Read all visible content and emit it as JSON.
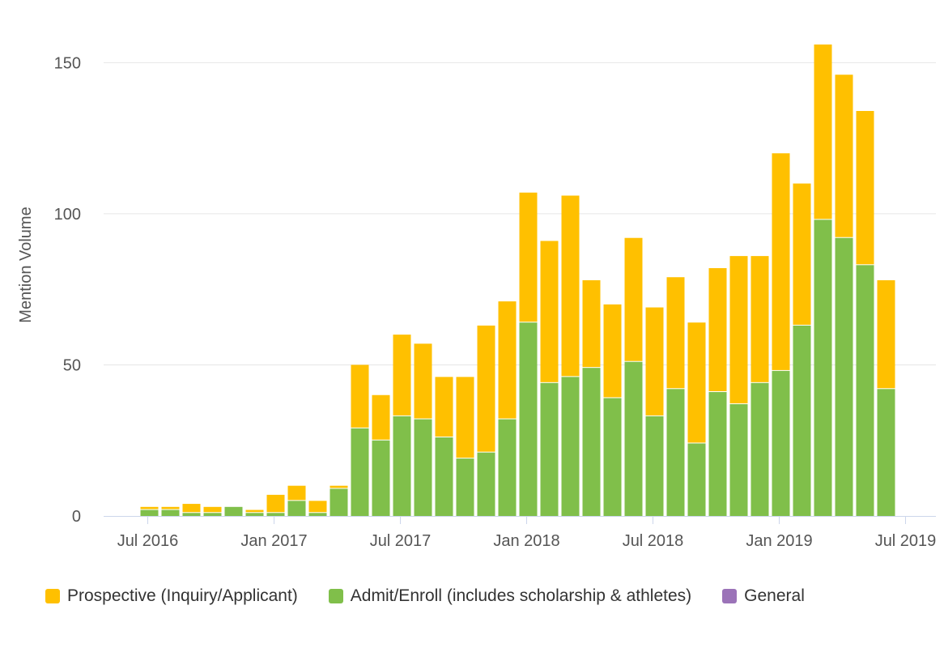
{
  "chart_data": {
    "type": "bar",
    "stacked": true,
    "ylabel": "Mention Volume",
    "ylim": [
      0,
      160
    ],
    "yticks": [
      0,
      50,
      100,
      150
    ],
    "xticks": [
      {
        "label": "Jul 2016",
        "month": 0
      },
      {
        "label": "Jan 2017",
        "month": 6
      },
      {
        "label": "Jul 2017",
        "month": 12
      },
      {
        "label": "Jan 2018",
        "month": 18
      },
      {
        "label": "Jul 2018",
        "month": 24
      },
      {
        "label": "Jan 2019",
        "month": 30
      },
      {
        "label": "Jul 2019",
        "month": 36
      }
    ],
    "categories": [
      "2016-07",
      "2016-08",
      "2016-09",
      "2016-10",
      "2016-11",
      "2016-12",
      "2017-01",
      "2017-02",
      "2017-03",
      "2017-04",
      "2017-05",
      "2017-06",
      "2017-07",
      "2017-08",
      "2017-09",
      "2017-10",
      "2017-11",
      "2017-12",
      "2018-01",
      "2018-02",
      "2018-03",
      "2018-04",
      "2018-05",
      "2018-06",
      "2018-07",
      "2018-08",
      "2018-09",
      "2018-10",
      "2018-11",
      "2018-12",
      "2019-01",
      "2019-02",
      "2019-03",
      "2019-04",
      "2019-05",
      "2019-06"
    ],
    "series": [
      {
        "name": "Admit/Enroll (includes scholarship & athletes)",
        "color": "#80bf4a",
        "values": [
          2,
          2,
          1,
          1,
          3,
          1,
          1,
          5,
          1,
          9,
          29,
          25,
          33,
          32,
          26,
          19,
          21,
          32,
          64,
          44,
          46,
          49,
          39,
          51,
          33,
          42,
          24,
          41,
          37,
          44,
          48,
          63,
          98,
          92,
          83,
          42
        ]
      },
      {
        "name": "Prospective (Inquiry/Applicant)",
        "color": "#ffc000",
        "values": [
          1,
          1,
          3,
          2,
          0,
          1,
          6,
          5,
          4,
          1,
          21,
          15,
          27,
          25,
          20,
          27,
          42,
          39,
          43,
          47,
          60,
          29,
          31,
          41,
          36,
          37,
          40,
          41,
          49,
          42,
          72,
          47,
          58,
          54,
          51,
          36
        ]
      },
      {
        "name": "General",
        "color": "#9b73b8",
        "values": [
          0,
          0,
          0,
          0,
          0,
          0,
          0,
          0,
          0,
          0,
          0,
          0,
          0,
          0,
          0,
          0,
          0,
          0,
          0,
          0,
          0,
          0,
          0,
          0,
          0,
          0,
          0,
          0,
          0,
          0,
          0,
          0,
          0,
          0,
          0,
          0
        ]
      }
    ],
    "legend": {
      "placement": "bottom-left",
      "items": [
        {
          "label": "Prospective (Inquiry/Applicant)",
          "color": "#ffc000"
        },
        {
          "label": "Admit/Enroll (includes scholarship & athletes)",
          "color": "#80bf4a"
        },
        {
          "label": "General",
          "color": "#9b73b8"
        }
      ]
    },
    "grid": true
  }
}
